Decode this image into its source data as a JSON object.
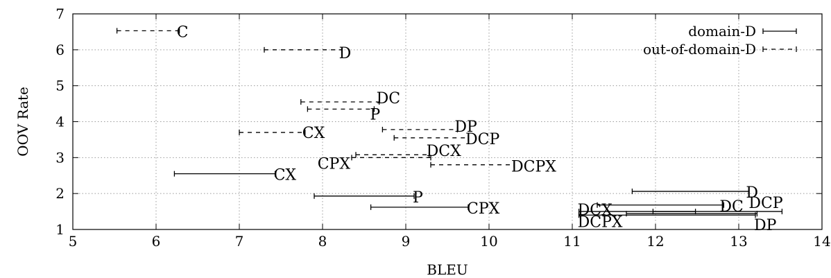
{
  "chart_data": {
    "type": "interval",
    "xlabel": "BLEU",
    "ylabel": "OOV Rate",
    "xlim": [
      5,
      14
    ],
    "ylim": [
      1,
      7
    ],
    "xticks": [
      "5",
      "6",
      "7",
      "8",
      "9",
      "10",
      "11",
      "12",
      "13",
      "14"
    ],
    "yticks": [
      "1",
      "2",
      "3",
      "4",
      "5",
      "6",
      "7"
    ],
    "grid": true,
    "legend_position": "top-right",
    "series": [
      {
        "name": "domain-D",
        "style": "solid",
        "points": [
          {
            "label": "CX",
            "y": 2.55,
            "x_min": 6.22,
            "x_max": 7.43
          },
          {
            "label": "P",
            "y": 1.93,
            "x_min": 7.9,
            "x_max": 9.1
          },
          {
            "label": "CPX",
            "y": 1.62,
            "x_min": 8.58,
            "x_max": 9.75
          },
          {
            "label": "D",
            "y": 2.06,
            "x_min": 11.72,
            "x_max": 13.12
          },
          {
            "label": "DC",
            "y": 1.68,
            "x_min": 11.3,
            "x_max": 12.82
          },
          {
            "label": "DCP",
            "y": 1.5,
            "x_min": 11.97,
            "x_max": 13.52
          },
          {
            "label": "DCX",
            "y": 1.5,
            "x_min": 11.08,
            "x_max": 12.48
          },
          {
            "label": "DCPX",
            "y": 1.4,
            "x_min": 11.08,
            "x_max": 13.2
          },
          {
            "label": "DP",
            "y": 1.44,
            "x_min": 11.65,
            "x_max": 13.22
          }
        ]
      },
      {
        "name": "out-of-domain-D",
        "style": "dashed",
        "points": [
          {
            "label": "C",
            "y": 6.53,
            "x_min": 5.53,
            "x_max": 6.28
          },
          {
            "label": "D",
            "y": 6.0,
            "x_min": 7.3,
            "x_max": 8.23
          },
          {
            "label": "DC",
            "y": 4.55,
            "x_min": 7.74,
            "x_max": 8.68
          },
          {
            "label": "P",
            "y": 4.35,
            "x_min": 7.82,
            "x_max": 8.62
          },
          {
            "label": "CX",
            "y": 3.7,
            "x_min": 7.0,
            "x_max": 7.79
          },
          {
            "label": "DP",
            "y": 3.78,
            "x_min": 8.72,
            "x_max": 9.62
          },
          {
            "label": "DCP",
            "y": 3.55,
            "x_min": 8.86,
            "x_max": 9.75
          },
          {
            "label": "DCX",
            "y": 3.08,
            "x_min": 8.4,
            "x_max": 9.28
          },
          {
            "label": "CPX",
            "y": 3.0,
            "x_min": 8.35,
            "x_max": 9.3
          },
          {
            "label": "DCPX",
            "y": 2.8,
            "x_min": 9.3,
            "x_max": 10.3
          }
        ]
      }
    ]
  }
}
